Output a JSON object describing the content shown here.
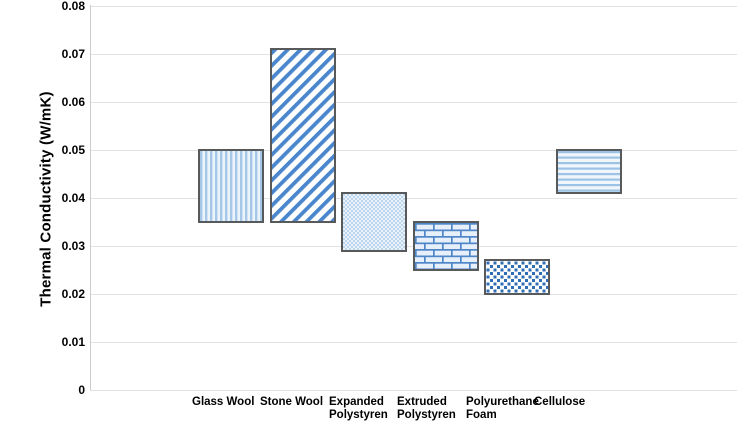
{
  "chart_data": {
    "type": "bar",
    "subtype": "floating-range-bars",
    "title": "",
    "xlabel": "",
    "ylabel": "Thermal Conductivity (W/mK)",
    "ylim": [
      0,
      0.08
    ],
    "ytick_interval": 0.01,
    "yticks": [
      "0",
      "0.01",
      "0.02",
      "0.03",
      "0.04",
      "0.05",
      "0.06",
      "0.07",
      "0.08"
    ],
    "grid": "horizontal",
    "legend_position": "none",
    "categories": [
      "Glass Wool",
      "Stone Wool",
      "Expanded Polystyren",
      "Extruded Polystyren",
      "Polyurethane Foam",
      "Cellulose"
    ],
    "bars": [
      {
        "category": "Glass Wool",
        "label_lines": [
          "Glass Wool"
        ],
        "min": 0.035,
        "max": 0.05,
        "pattern": "vertical-lines"
      },
      {
        "category": "Stone Wool",
        "label_lines": [
          "Stone Wool"
        ],
        "min": 0.035,
        "max": 0.071,
        "pattern": "diagonal-lines"
      },
      {
        "category": "Expanded Polystyren",
        "label_lines": [
          "Expanded",
          "Polystyren"
        ],
        "min": 0.029,
        "max": 0.041,
        "pattern": "fine-weave"
      },
      {
        "category": "Extruded Polystyren",
        "label_lines": [
          "Extruded",
          "Polystyren"
        ],
        "min": 0.025,
        "max": 0.035,
        "pattern": "brick"
      },
      {
        "category": "Polyurethane Foam",
        "label_lines": [
          "Polyurethane",
          "Foam"
        ],
        "min": 0.02,
        "max": 0.027,
        "pattern": "checkerboard"
      },
      {
        "category": "Cellulose",
        "label_lines": [
          "Cellulose"
        ],
        "min": 0.041,
        "max": 0.05,
        "pattern": "horizontal-lines"
      }
    ],
    "colors": {
      "bar_border": "#58595b",
      "grid_line": "#e2e2e2",
      "axis_line": "#cccccc",
      "text": "#000000",
      "pattern_blue_light": "#a6c8e8",
      "pattern_blue_medium": "#4a86cd",
      "pattern_blue_strong": "#2f6eb5",
      "pattern_bg_light": "#e9f1fa",
      "background": "#ffffff"
    }
  }
}
